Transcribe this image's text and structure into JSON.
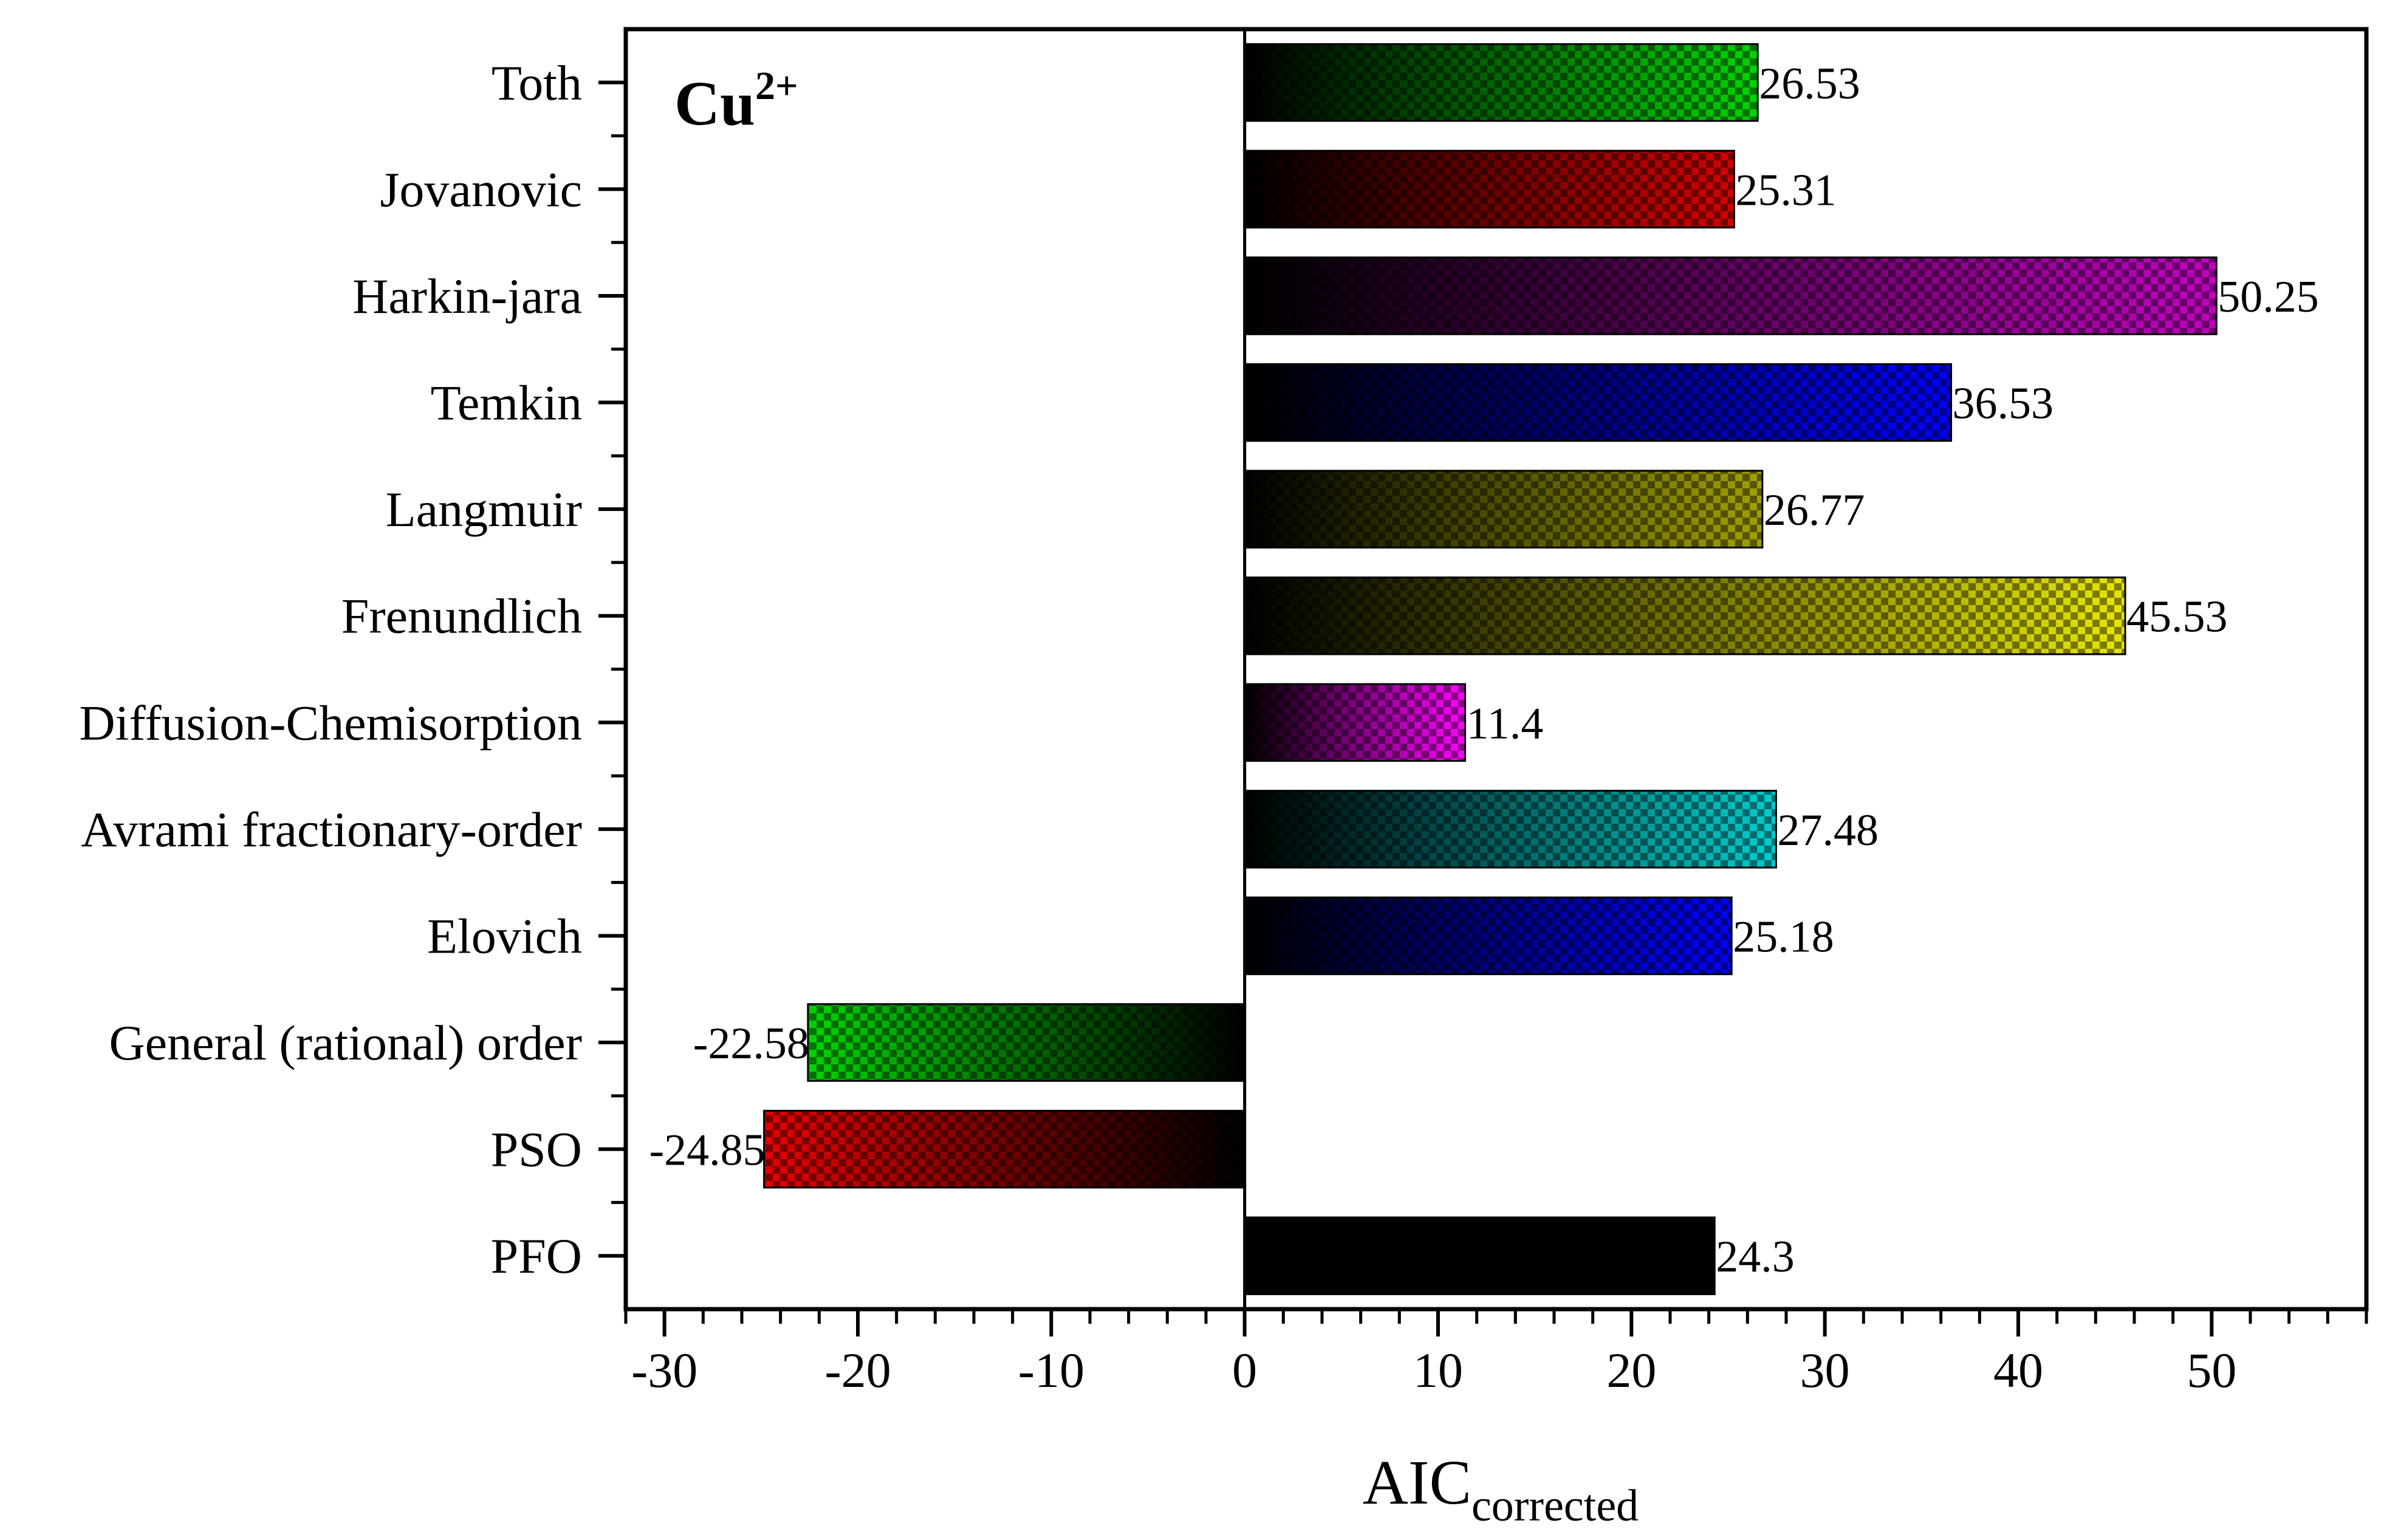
{
  "chart_data": {
    "type": "bar",
    "orientation": "horizontal",
    "panel_label": {
      "base": "Cu",
      "superscript": "2+"
    },
    "categories": [
      "Toth",
      "Jovanovic",
      "Harkin-jara",
      "Temkin",
      "Langmuir",
      "Frenundlich",
      "Diffusion-Chemisorption",
      "Avrami fractionary-order",
      "Elovich",
      "General (rational) order",
      "PSO",
      "PFO"
    ],
    "values": [
      26.53,
      25.31,
      50.25,
      36.53,
      26.77,
      45.53,
      11.4,
      27.48,
      25.18,
      -22.58,
      -24.85,
      24.3
    ],
    "value_labels": [
      "26.53",
      "25.31",
      "50.25",
      "36.53",
      "26.77",
      "45.53",
      "11.4",
      "27.48",
      "25.18",
      "-22.58",
      "-24.85",
      "24.3"
    ],
    "colors": [
      "#00d400",
      "#d40000",
      "#c000c0",
      "#0000ff",
      "#a0a000",
      "#e6e600",
      "#ff00ff",
      "#00cccc",
      "#0000ff",
      "#00d400",
      "#e60000",
      "#000000"
    ],
    "xlabel": {
      "base": "AIC",
      "subscript": "corrected"
    },
    "ylabel": "",
    "xlim": [
      -32,
      58
    ],
    "xticks": [
      -30,
      -20,
      -10,
      0,
      10,
      20,
      30,
      40,
      50
    ],
    "xtick_labels": [
      "-30",
      "-20",
      "-10",
      "0",
      "10",
      "20",
      "30",
      "40",
      "50"
    ]
  }
}
